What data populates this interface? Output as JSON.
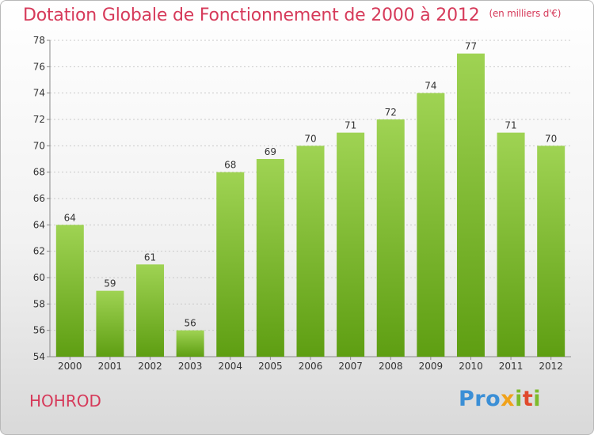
{
  "title": "Dotation Globale de Fonctionnement de 2000 à 2012",
  "subtitle": "(en milliers d'€)",
  "place": "HOHROD",
  "logo": {
    "p1": "Pro",
    "p2": "x",
    "p3": "i",
    "p4": "t",
    "p5": "i"
  },
  "colors": {
    "title": "#d63a5a",
    "bar_top": "#9fd353",
    "bar_bottom": "#5e9e12"
  },
  "chart_data": {
    "type": "bar",
    "categories": [
      "2000",
      "2001",
      "2002",
      "2003",
      "2004",
      "2005",
      "2006",
      "2007",
      "2008",
      "2009",
      "2010",
      "2011",
      "2012"
    ],
    "values": [
      64,
      59,
      61,
      56,
      68,
      69,
      70,
      71,
      72,
      74,
      77,
      71,
      70
    ],
    "ylim": [
      54,
      78
    ],
    "yticks": [
      54,
      56,
      58,
      60,
      62,
      64,
      66,
      68,
      70,
      72,
      74,
      76,
      78
    ],
    "grid": true,
    "data_labels": true
  }
}
